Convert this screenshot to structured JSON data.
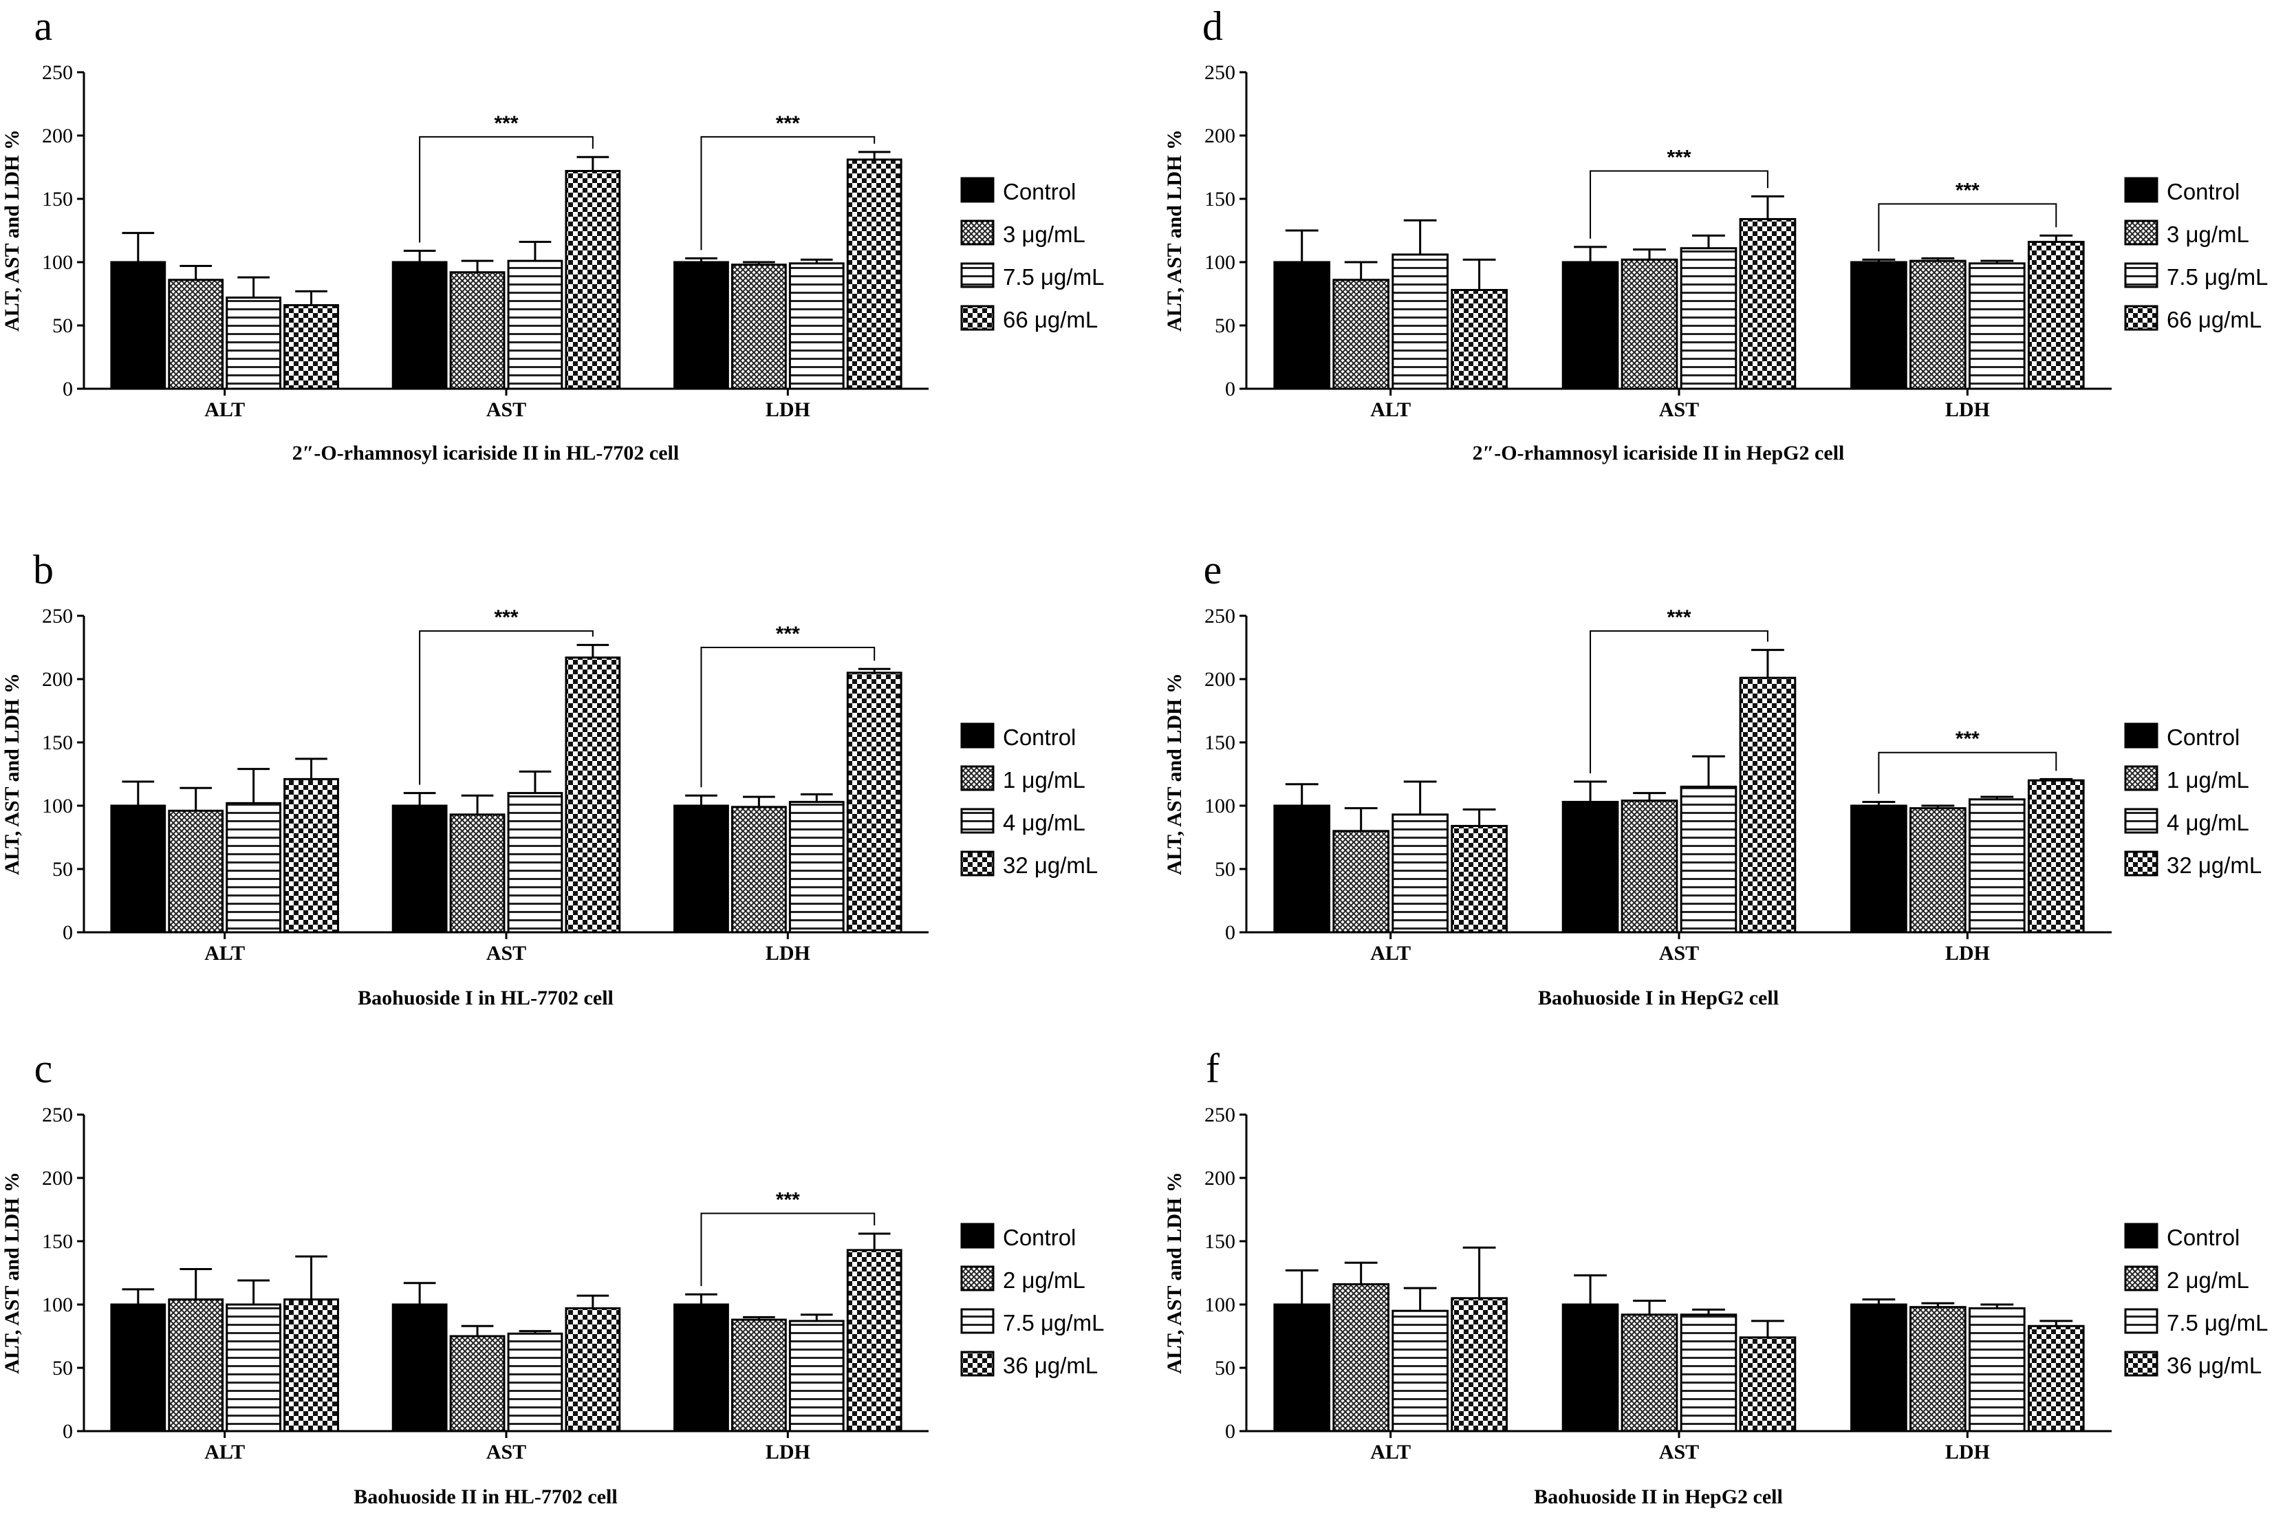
{
  "chart_data": [
    {
      "panel": "a",
      "type": "bar",
      "title": "2″-O-rhamnosyl icariside II in HL-7702 cell",
      "ylabel": "ALT, AST and LDH %",
      "ylim": [
        0,
        250
      ],
      "yticks": [
        0,
        50,
        100,
        150,
        200,
        250
      ],
      "categories": [
        "ALT",
        "AST",
        "LDH"
      ],
      "series": [
        {
          "name": "Control",
          "pattern": "solid",
          "values": [
            100,
            100,
            100
          ],
          "errors": [
            23,
            9,
            3
          ]
        },
        {
          "name": "3 μg/mL",
          "pattern": "crosshatch",
          "values": [
            86,
            92,
            98
          ],
          "errors": [
            11,
            9,
            2
          ]
        },
        {
          "name": "7.5 μg/mL",
          "pattern": "hlines",
          "values": [
            72,
            101,
            99
          ],
          "errors": [
            16,
            15,
            3
          ]
        },
        {
          "name": "66 μg/mL",
          "pattern": "checker",
          "values": [
            66,
            172,
            181
          ],
          "errors": [
            11,
            11,
            6
          ]
        }
      ],
      "significance": [
        {
          "category": "AST",
          "label": "***",
          "bracket_top": 199
        },
        {
          "category": "LDH",
          "label": "***",
          "bracket_top": 199
        }
      ]
    },
    {
      "panel": "d",
      "type": "bar",
      "title": "2″-O-rhamnosyl icariside II in HepG2 cell",
      "ylabel": "ALT, AST and LDH %",
      "ylim": [
        0,
        250
      ],
      "yticks": [
        0,
        50,
        100,
        150,
        200,
        250
      ],
      "categories": [
        "ALT",
        "AST",
        "LDH"
      ],
      "series": [
        {
          "name": "Control",
          "pattern": "solid",
          "values": [
            100,
            100,
            100
          ],
          "errors": [
            25,
            12,
            2
          ]
        },
        {
          "name": "3 μg/mL",
          "pattern": "crosshatch",
          "values": [
            86,
            102,
            101
          ],
          "errors": [
            14,
            8,
            2
          ]
        },
        {
          "name": "7.5 μg/mL",
          "pattern": "hlines",
          "values": [
            106,
            111,
            99
          ],
          "errors": [
            27,
            10,
            2
          ]
        },
        {
          "name": "66 μg/mL",
          "pattern": "checker",
          "values": [
            78,
            134,
            116
          ],
          "errors": [
            24,
            18,
            5
          ]
        }
      ],
      "significance": [
        {
          "category": "AST",
          "label": "***",
          "bracket_top": 172
        },
        {
          "category": "LDH",
          "label": "***",
          "bracket_top": 146
        }
      ]
    },
    {
      "panel": "b",
      "type": "bar",
      "title": "Baohuoside I in HL-7702 cell",
      "ylabel": "ALT, AST and LDH %",
      "ylim": [
        0,
        250
      ],
      "yticks": [
        0,
        50,
        100,
        150,
        200,
        250
      ],
      "categories": [
        "ALT",
        "AST",
        "LDH"
      ],
      "series": [
        {
          "name": "Control",
          "pattern": "solid",
          "values": [
            100,
            100,
            100
          ],
          "errors": [
            19,
            10,
            8
          ]
        },
        {
          "name": "1 μg/mL",
          "pattern": "crosshatch",
          "values": [
            96,
            93,
            99
          ],
          "errors": [
            18,
            15,
            8
          ]
        },
        {
          "name": "4 μg/mL",
          "pattern": "hlines",
          "values": [
            102,
            110,
            103
          ],
          "errors": [
            27,
            17,
            6
          ]
        },
        {
          "name": "32 μg/mL",
          "pattern": "checker",
          "values": [
            121,
            217,
            205
          ],
          "errors": [
            16,
            10,
            3
          ]
        }
      ],
      "significance": [
        {
          "category": "AST",
          "label": "***",
          "bracket_top": 238
        },
        {
          "category": "LDH",
          "label": "***",
          "bracket_top": 225
        }
      ]
    },
    {
      "panel": "e",
      "type": "bar",
      "title": "Baohuoside I in HepG2 cell",
      "ylabel": "ALT, AST and LDH %",
      "ylim": [
        0,
        250
      ],
      "yticks": [
        0,
        50,
        100,
        150,
        200,
        250
      ],
      "categories": [
        "ALT",
        "AST",
        "LDH"
      ],
      "series": [
        {
          "name": "Control",
          "pattern": "solid",
          "values": [
            100,
            103,
            100
          ],
          "errors": [
            17,
            16,
            3
          ]
        },
        {
          "name": "1 μg/mL",
          "pattern": "crosshatch",
          "values": [
            80,
            104,
            98
          ],
          "errors": [
            18,
            6,
            2
          ]
        },
        {
          "name": "4 μg/mL",
          "pattern": "hlines",
          "values": [
            93,
            115,
            105
          ],
          "errors": [
            26,
            24,
            2
          ]
        },
        {
          "name": "32 μg/mL",
          "pattern": "checker",
          "values": [
            84,
            201,
            120
          ],
          "errors": [
            13,
            22,
            1
          ]
        }
      ],
      "significance": [
        {
          "category": "AST",
          "label": "***",
          "bracket_top": 238
        },
        {
          "category": "LDH",
          "label": "***",
          "bracket_top": 142
        }
      ]
    },
    {
      "panel": "c",
      "type": "bar",
      "title": "Baohuoside II in HL-7702 cell",
      "ylabel": "ALT, AST and LDH %",
      "ylim": [
        0,
        250
      ],
      "yticks": [
        0,
        50,
        100,
        150,
        200,
        250
      ],
      "categories": [
        "ALT",
        "AST",
        "LDH"
      ],
      "series": [
        {
          "name": "Control",
          "pattern": "solid",
          "values": [
            100,
            100,
            100
          ],
          "errors": [
            12,
            17,
            8
          ]
        },
        {
          "name": "2 μg/mL",
          "pattern": "crosshatch",
          "values": [
            104,
            75,
            88
          ],
          "errors": [
            24,
            8,
            2
          ]
        },
        {
          "name": "7.5 μg/mL",
          "pattern": "hlines",
          "values": [
            100,
            77,
            87
          ],
          "errors": [
            19,
            2,
            5
          ]
        },
        {
          "name": "36 μg/mL",
          "pattern": "checker",
          "values": [
            104,
            97,
            143
          ],
          "errors": [
            34,
            10,
            13
          ]
        }
      ],
      "significance": [
        {
          "category": "LDH",
          "label": "***",
          "bracket_top": 172
        }
      ]
    },
    {
      "panel": "f",
      "type": "bar",
      "title": "Baohuoside II in HepG2 cell",
      "ylabel": "ALT, AST and LDH %",
      "ylim": [
        0,
        250
      ],
      "yticks": [
        0,
        50,
        100,
        150,
        200,
        250
      ],
      "categories": [
        "ALT",
        "AST",
        "LDH"
      ],
      "series": [
        {
          "name": "Control",
          "pattern": "solid",
          "values": [
            100,
            100,
            100
          ],
          "errors": [
            27,
            23,
            4
          ]
        },
        {
          "name": "2 μg/mL",
          "pattern": "crosshatch",
          "values": [
            116,
            92,
            98
          ],
          "errors": [
            17,
            11,
            3
          ]
        },
        {
          "name": "7.5 μg/mL",
          "pattern": "hlines",
          "values": [
            95,
            92,
            97
          ],
          "errors": [
            18,
            4,
            3
          ]
        },
        {
          "name": "36 μg/mL",
          "pattern": "checker",
          "values": [
            105,
            74,
            83
          ],
          "errors": [
            40,
            13,
            4
          ]
        }
      ],
      "significance": []
    }
  ]
}
